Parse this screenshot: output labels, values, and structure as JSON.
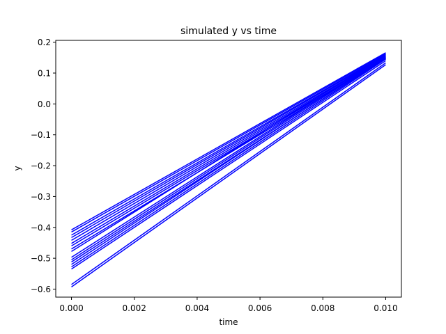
{
  "chart_data": {
    "type": "line",
    "title": "simulated y vs time",
    "xlabel": "time",
    "ylabel": "y",
    "xlim": [
      -0.0005,
      0.0105
    ],
    "ylim": [
      -0.626,
      0.206
    ],
    "x": [
      0.0,
      0.01
    ],
    "x_ticks": [
      0.0,
      0.002,
      0.004,
      0.006,
      0.008,
      0.01
    ],
    "x_tick_labels": [
      "0.000",
      "0.002",
      "0.004",
      "0.006",
      "0.008",
      "0.010"
    ],
    "y_ticks": [
      0.2,
      0.1,
      0.0,
      -0.1,
      -0.2,
      -0.3,
      -0.4,
      -0.5,
      -0.6
    ],
    "y_tick_labels": [
      "0.2",
      "0.1",
      "0.0",
      "−0.1",
      "−0.2",
      "−0.3",
      "−0.4",
      "−0.5",
      "−0.6"
    ],
    "line_color": "#0000ff",
    "grid": false,
    "series": [
      {
        "values": [
          -0.408,
          0.166
        ]
      },
      {
        "values": [
          -0.415,
          0.163
        ]
      },
      {
        "values": [
          -0.425,
          0.16
        ]
      },
      {
        "values": [
          -0.433,
          0.158
        ]
      },
      {
        "values": [
          -0.442,
          0.155
        ]
      },
      {
        "values": [
          -0.452,
          0.153
        ]
      },
      {
        "values": [
          -0.46,
          0.15
        ]
      },
      {
        "values": [
          -0.47,
          0.148
        ]
      },
      {
        "values": [
          -0.478,
          0.16
        ]
      },
      {
        "values": [
          -0.497,
          0.155
        ]
      },
      {
        "values": [
          -0.505,
          0.152
        ]
      },
      {
        "values": [
          -0.512,
          0.147
        ]
      },
      {
        "values": [
          -0.52,
          0.15
        ]
      },
      {
        "values": [
          -0.528,
          0.145
        ]
      },
      {
        "values": [
          -0.535,
          0.14
        ]
      },
      {
        "values": [
          -0.585,
          0.133
        ]
      },
      {
        "values": [
          -0.593,
          0.127
        ]
      }
    ]
  }
}
